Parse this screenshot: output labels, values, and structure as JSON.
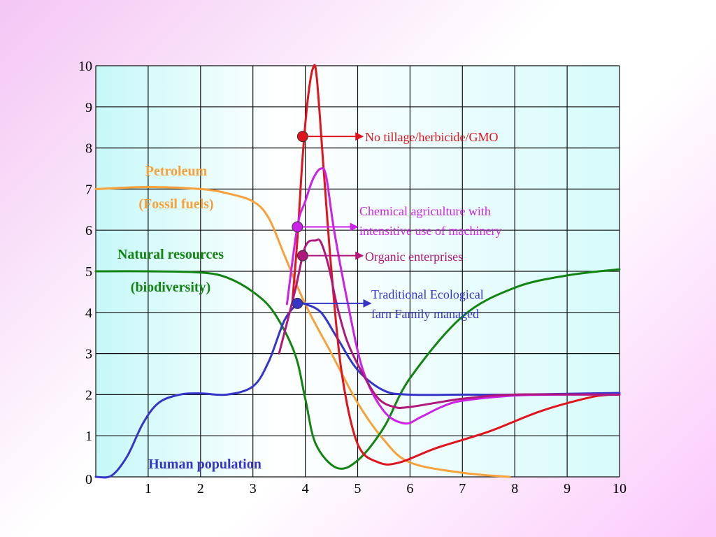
{
  "chart_data": {
    "type": "line",
    "title": "",
    "xlabel": "",
    "ylabel": "",
    "xlim": [
      0,
      10
    ],
    "ylim": [
      0,
      10
    ],
    "grid": true,
    "x_ticks": [
      "1",
      "2",
      "3",
      "4",
      "5",
      "6",
      "7",
      "8",
      "9",
      "10"
    ],
    "y_ticks": [
      "0",
      "1",
      "2",
      "3",
      "4",
      "5",
      "6",
      "7",
      "8",
      "9",
      "10"
    ],
    "colors": {
      "petroleum": "#f7a13b",
      "natural": "#128412",
      "human": "#3535c8",
      "notillage": "#e0141c",
      "chemical": "#cc22e8",
      "organic": "#b0187c",
      "plot_bg_left": "#c6f8f8",
      "plot_bg_right": "#d7fbfb"
    },
    "series": [
      {
        "key": "petroleum",
        "name": "Petroleum (Fossil fuels)",
        "x": [
          0,
          1,
          2,
          2.5,
          3,
          3.3,
          3.6,
          4.0,
          4.5,
          5.0,
          5.5,
          6.0,
          7.0,
          7.9
        ],
        "y": [
          7,
          7.05,
          7.0,
          6.9,
          6.7,
          6.3,
          5.4,
          4.2,
          3.0,
          1.8,
          0.9,
          0.35,
          0.1,
          0.0
        ]
      },
      {
        "key": "natural",
        "name": "Natural resources (biodiversity)",
        "x": [
          0,
          1,
          2,
          2.5,
          3,
          3.4,
          3.8,
          4.0,
          4.2,
          4.6,
          5.0,
          5.5,
          6.0,
          7.0,
          8.0,
          9.0,
          10.0
        ],
        "y": [
          5,
          5.0,
          4.97,
          4.85,
          4.5,
          4.0,
          3.0,
          1.9,
          0.8,
          0.22,
          0.4,
          1.2,
          2.4,
          3.9,
          4.6,
          4.9,
          5.05
        ]
      },
      {
        "key": "human",
        "name": "Human population",
        "x": [
          0,
          0.3,
          0.6,
          0.9,
          1.2,
          1.6,
          2.0,
          2.5,
          3.0,
          3.3,
          3.6,
          3.85,
          4.0,
          4.3,
          4.6,
          5.0,
          5.5,
          6.0,
          7.0,
          8.0,
          9.0,
          10.0
        ],
        "y": [
          0.0,
          0.03,
          0.5,
          1.3,
          1.8,
          2.0,
          2.03,
          2.0,
          2.2,
          2.8,
          3.8,
          4.2,
          4.2,
          4.0,
          3.4,
          2.6,
          2.1,
          2.0,
          2.0,
          2.0,
          2.02,
          2.04
        ]
      },
      {
        "key": "notillage",
        "name": "No tillage/herbicide/GMO",
        "x": [
          3.75,
          3.85,
          3.95,
          4.05,
          4.15,
          4.22,
          4.35,
          4.5,
          4.7,
          5.0,
          5.4,
          5.8,
          6.5,
          7.5,
          8.5,
          9.5,
          10.0
        ],
        "y": [
          4.2,
          5.8,
          7.8,
          9.2,
          9.95,
          9.7,
          7.5,
          5.0,
          2.5,
          0.8,
          0.35,
          0.35,
          0.7,
          1.1,
          1.6,
          1.95,
          2.0
        ]
      },
      {
        "key": "chemical",
        "name": "Chemical agriculture with intensitive use of machinery",
        "x": [
          3.65,
          3.85,
          4.0,
          4.15,
          4.3,
          4.4,
          4.55,
          4.8,
          5.1,
          5.5,
          5.9,
          6.2,
          6.6,
          7.0,
          8.0,
          9.0,
          10.0
        ],
        "y": [
          4.2,
          6.1,
          6.7,
          7.25,
          7.5,
          7.3,
          6.0,
          4.3,
          2.6,
          1.6,
          1.3,
          1.45,
          1.7,
          1.85,
          1.98,
          2.0,
          2.0
        ]
      },
      {
        "key": "organic",
        "name": "Organic enterprises",
        "x": [
          3.5,
          3.8,
          4.0,
          4.2,
          4.3,
          4.45,
          4.6,
          4.8,
          5.1,
          5.4,
          5.7,
          6.0,
          7.0,
          8.0,
          10.0
        ],
        "y": [
          3.0,
          4.5,
          5.6,
          5.75,
          5.7,
          5.1,
          4.2,
          3.3,
          2.5,
          1.9,
          1.7,
          1.7,
          1.9,
          2.0,
          2.0
        ]
      }
    ],
    "markers": [
      {
        "key": "notillage",
        "x": 3.95,
        "y": 8.28,
        "arrow_to_x": 5.1
      },
      {
        "key": "chemical",
        "x": 3.85,
        "y": 6.08,
        "arrow_to_x": 5.0
      },
      {
        "key": "organic",
        "x": 3.95,
        "y": 5.38,
        "arrow_to_x": 5.1
      },
      {
        "key": "human",
        "x": 3.85,
        "y": 4.22,
        "arrow_to_x": 5.25
      }
    ],
    "curve_labels": [
      {
        "key": "petroleum",
        "lines": [
          "Petroleum",
          "(Fossil fuels)"
        ]
      },
      {
        "key": "natural",
        "lines": [
          "Natural resources",
          "(biodiversity)"
        ]
      },
      {
        "key": "human",
        "lines": [
          "Human population"
        ]
      }
    ],
    "annotations": [
      {
        "key": "notillage",
        "lines": [
          "No tillage/herbicide/GMO"
        ]
      },
      {
        "key": "chemical",
        "lines": [
          "Chemical agriculture with",
          "intensitive use of machinery"
        ]
      },
      {
        "key": "organic",
        "lines": [
          "Organic enterprises"
        ]
      },
      {
        "key": "human",
        "lines": [
          "Traditional Ecological",
          "farn Family managed"
        ]
      }
    ]
  }
}
